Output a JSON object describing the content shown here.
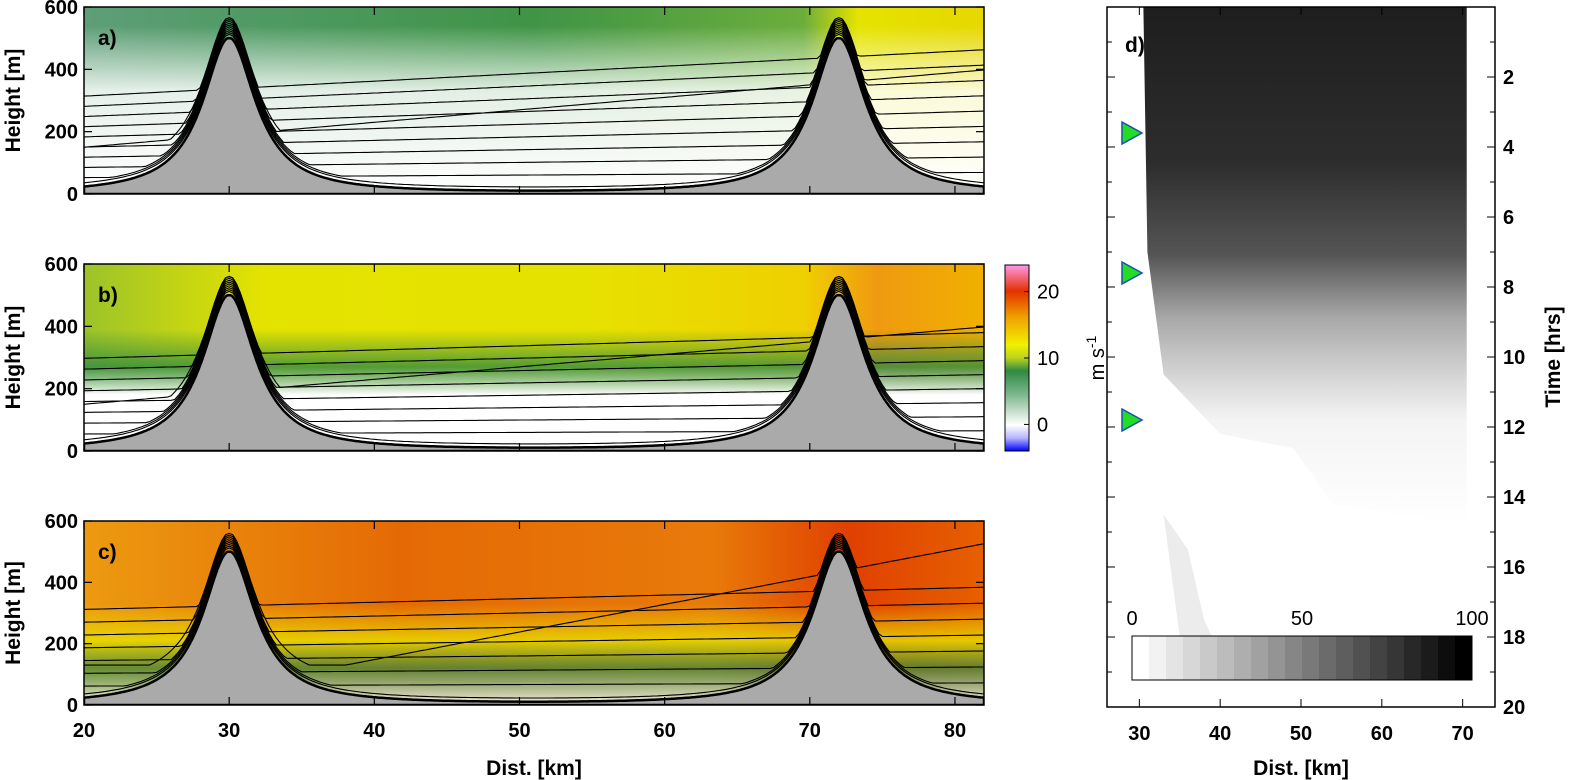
{
  "chart_data": [
    {
      "type": "heatmap",
      "panel_label": "a)",
      "ylabel": "Height [m]",
      "xlim": [
        20,
        82
      ],
      "ylim": [
        0,
        600
      ],
      "xticks": [
        "20",
        "30",
        "40",
        "50",
        "60",
        "70",
        "80"
      ],
      "yticks": [
        "0",
        "200",
        "400",
        "600"
      ],
      "ridges_km": [
        30,
        72
      ],
      "ridge_height_m": 500
    },
    {
      "type": "heatmap",
      "panel_label": "b)",
      "ylabel": "Height [m]",
      "xlim": [
        20,
        82
      ],
      "ylim": [
        0,
        600
      ],
      "xticks": [
        "20",
        "30",
        "40",
        "50",
        "60",
        "70",
        "80"
      ],
      "yticks": [
        "0",
        "200",
        "400",
        "600"
      ],
      "ridges_km": [
        30,
        72
      ],
      "ridge_height_m": 500
    },
    {
      "type": "heatmap",
      "panel_label": "c)",
      "ylabel": "Height [m]",
      "xlabel": "Dist. [km]",
      "xlim": [
        20,
        82
      ],
      "ylim": [
        0,
        600
      ],
      "xticks": [
        "20",
        "30",
        "40",
        "50",
        "60",
        "70",
        "80"
      ],
      "yticks": [
        "0",
        "200",
        "400",
        "600"
      ],
      "ridges_km": [
        30,
        72
      ],
      "ridge_height_m": 500
    },
    {
      "type": "heatmap",
      "panel_label": "d)",
      "xlabel": "Dist. [km]",
      "ylabel": "Time [hrs]",
      "xlim": [
        26,
        74
      ],
      "ylim": [
        20,
        0
      ],
      "xticks": [
        "30",
        "40",
        "50",
        "60",
        "70"
      ],
      "yticks": [
        "2",
        "4",
        "6",
        "8",
        "10",
        "12",
        "14",
        "16",
        "18",
        "20"
      ],
      "markers_time_hrs": [
        3.6,
        7.6,
        11.8
      ],
      "colorbar": {
        "ticks": [
          "0",
          "50",
          "100"
        ],
        "range": [
          0,
          100
        ],
        "colormap": "white-to-black"
      }
    }
  ],
  "colorbar_abc": {
    "unit": "m s",
    "unit_exp": "-1",
    "ticks": [
      "0",
      "10",
      "20"
    ],
    "range": [
      -4,
      24
    ],
    "colormap": [
      "#0000ff",
      "#ffffff",
      "#2f8a43",
      "#f1f100",
      "#e65c00",
      "#ff99e6"
    ]
  },
  "colors": {
    "terrain": "#aaaaaa",
    "marker": "#22dd22"
  }
}
